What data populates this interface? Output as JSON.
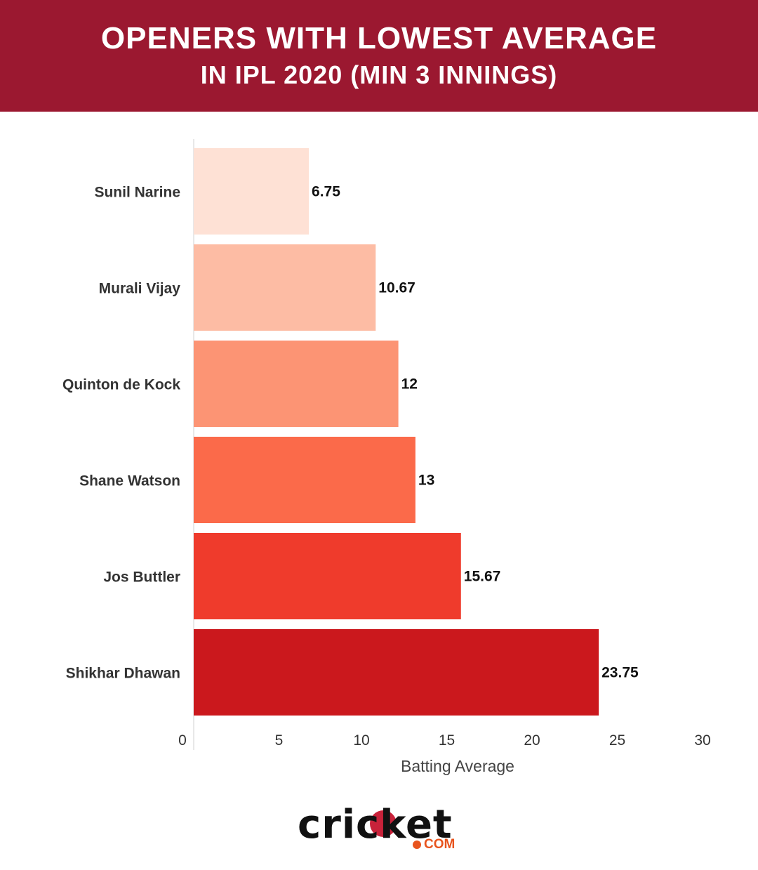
{
  "header": {
    "title_line1": "OPENERS WITH LOWEST AVERAGE",
    "title_line2": "IN IPL 2020 (MIN 3 INNINGS)"
  },
  "chart_data": {
    "type": "bar",
    "orientation": "horizontal",
    "categories": [
      "Sunil Narine",
      "Murali Vijay",
      "Quinton de Kock",
      "Shane Watson",
      "Jos Buttler",
      "Shikhar Dhawan"
    ],
    "values": [
      6.75,
      10.67,
      12,
      13,
      15.67,
      23.75
    ],
    "value_labels": [
      "6.75",
      "10.67",
      "12",
      "13",
      "15.67",
      "23.75"
    ],
    "colors": [
      "#fee1d5",
      "#fdbca4",
      "#fc9474",
      "#fb6a4a",
      "#ef3b2c",
      "#cb181d"
    ],
    "title": "OPENERS WITH LOWEST AVERAGE IN IPL 2020 (MIN 3 INNINGS)",
    "xlabel": "Batting Average",
    "ylabel": "",
    "xlim": [
      0,
      30
    ],
    "xticks": [
      "0",
      "5",
      "10",
      "15",
      "20",
      "25",
      "30"
    ],
    "grid": false,
    "legend": "none"
  },
  "logo": {
    "text": "cricket",
    "suffix": "COM",
    "dot_color": "#e8541e",
    "ball_color": "#c8223a"
  }
}
